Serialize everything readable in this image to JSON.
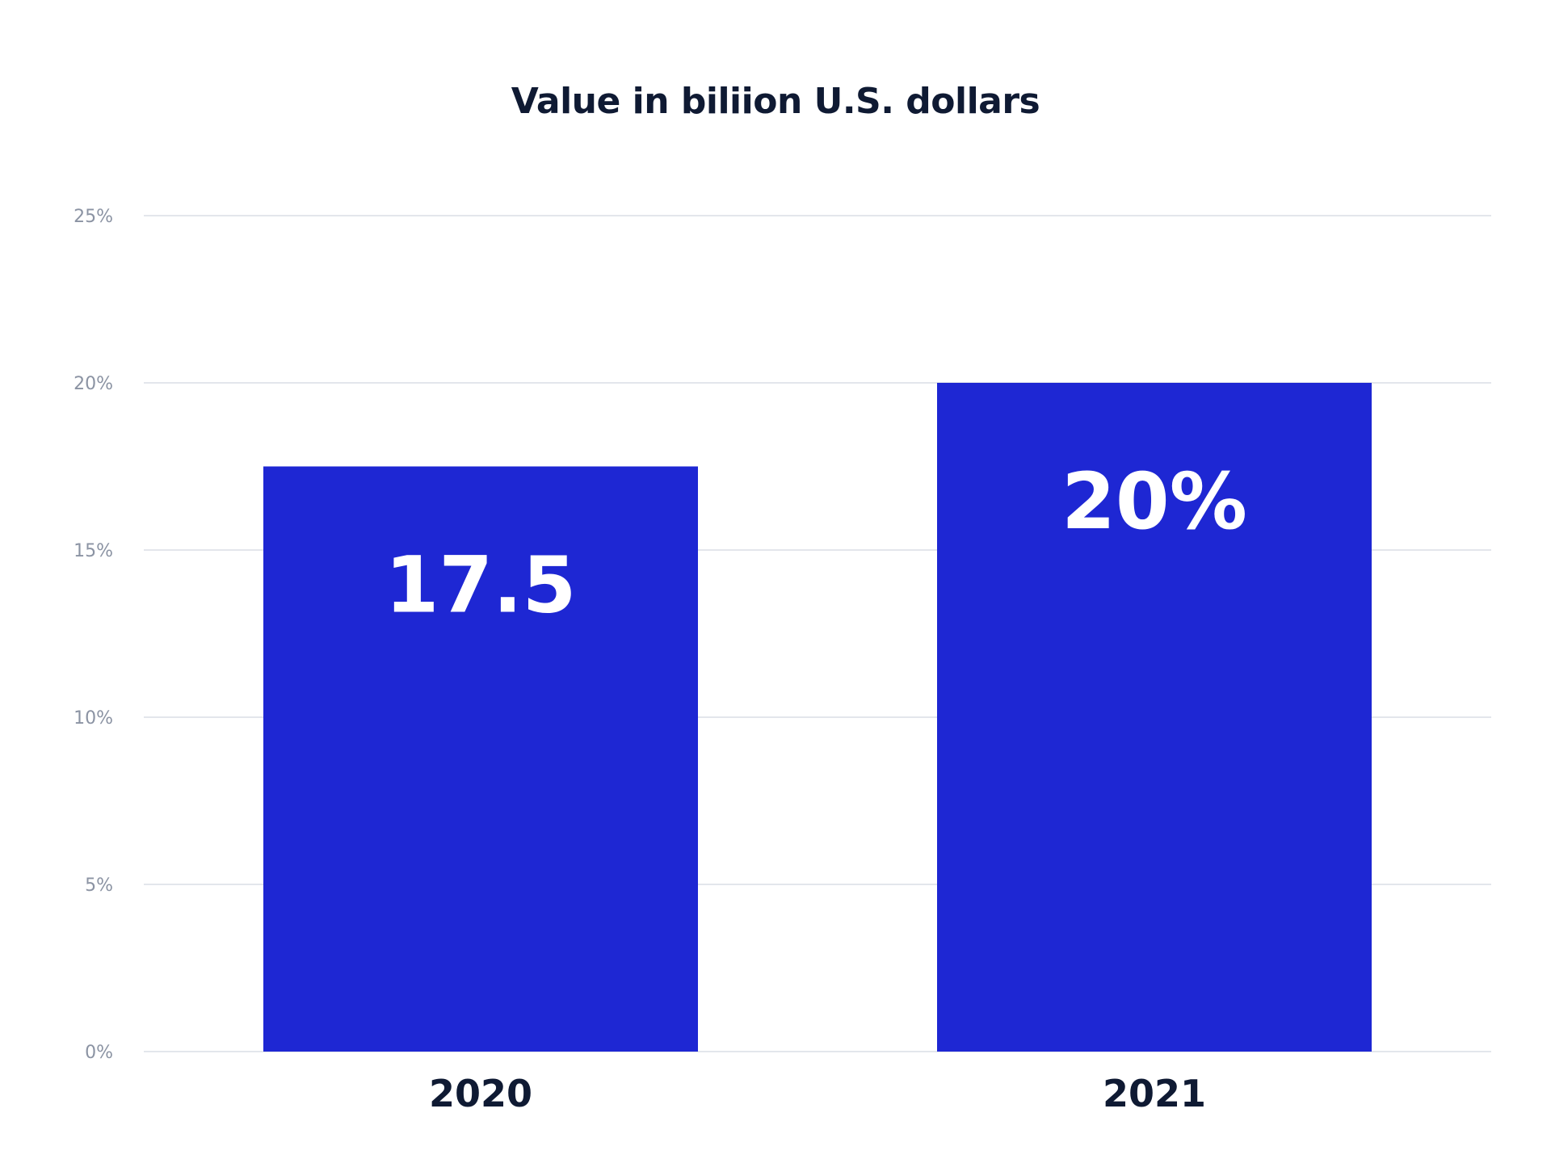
{
  "chart_data": {
    "type": "bar",
    "title": "Value in biliion U.S. dollars",
    "xlabel": "",
    "ylabel": "",
    "categories": [
      "2020",
      "2021"
    ],
    "values": [
      17.5,
      20
    ],
    "data_labels": [
      "17.5",
      "20%"
    ],
    "ylim": [
      0,
      25
    ],
    "y_ticks": [
      {
        "value": 0,
        "label": "0%"
      },
      {
        "value": 5,
        "label": "5%"
      },
      {
        "value": 10,
        "label": "10%"
      },
      {
        "value": 15,
        "label": "15%"
      },
      {
        "value": 20,
        "label": "20%"
      },
      {
        "value": 25,
        "label": "25%"
      }
    ],
    "grid": true,
    "legend": "none",
    "bar_color": "#1e27d3"
  }
}
